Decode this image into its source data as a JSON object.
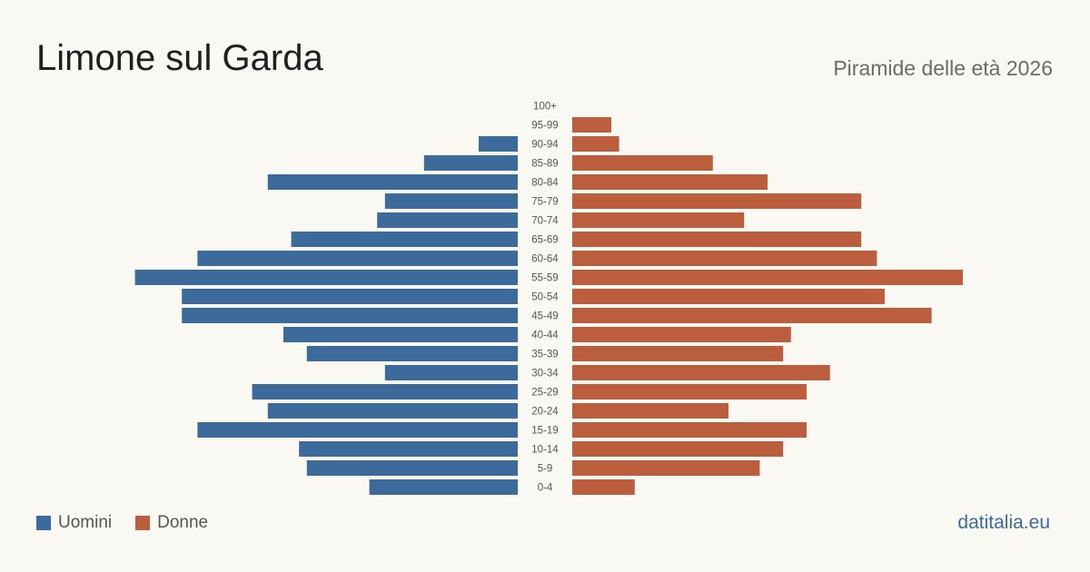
{
  "header": {
    "title": "Limone sul Garda",
    "subtitle": "Piramide delle età 2026"
  },
  "legend": {
    "men_label": "Uomini",
    "women_label": "Donne"
  },
  "brand": "datitalia.eu",
  "colors": {
    "men": "#3b6a9b",
    "women": "#bb5e3d",
    "brand": "#3b6a9b"
  },
  "chart_data": {
    "type": "bar",
    "orientation": "horizontal-pyramid",
    "title": "Limone sul Garda",
    "subtitle": "Piramide delle età 2026",
    "categories": [
      "100+",
      "95-99",
      "90-94",
      "85-89",
      "80-84",
      "75-79",
      "70-74",
      "65-69",
      "60-64",
      "55-59",
      "50-54",
      "45-49",
      "40-44",
      "35-39",
      "30-34",
      "25-29",
      "20-24",
      "15-19",
      "10-14",
      "5-9",
      "0-4"
    ],
    "series": [
      {
        "name": "Uomini",
        "values": [
          0,
          0,
          5,
          12,
          32,
          17,
          18,
          29,
          41,
          49,
          43,
          43,
          30,
          27,
          17,
          34,
          32,
          41,
          28,
          27,
          19
        ]
      },
      {
        "name": "Donne",
        "values": [
          0,
          5,
          6,
          18,
          25,
          37,
          22,
          37,
          39,
          50,
          40,
          46,
          28,
          27,
          33,
          30,
          20,
          30,
          27,
          24,
          8
        ]
      }
    ],
    "legend": "bottom-left",
    "grid": false
  }
}
